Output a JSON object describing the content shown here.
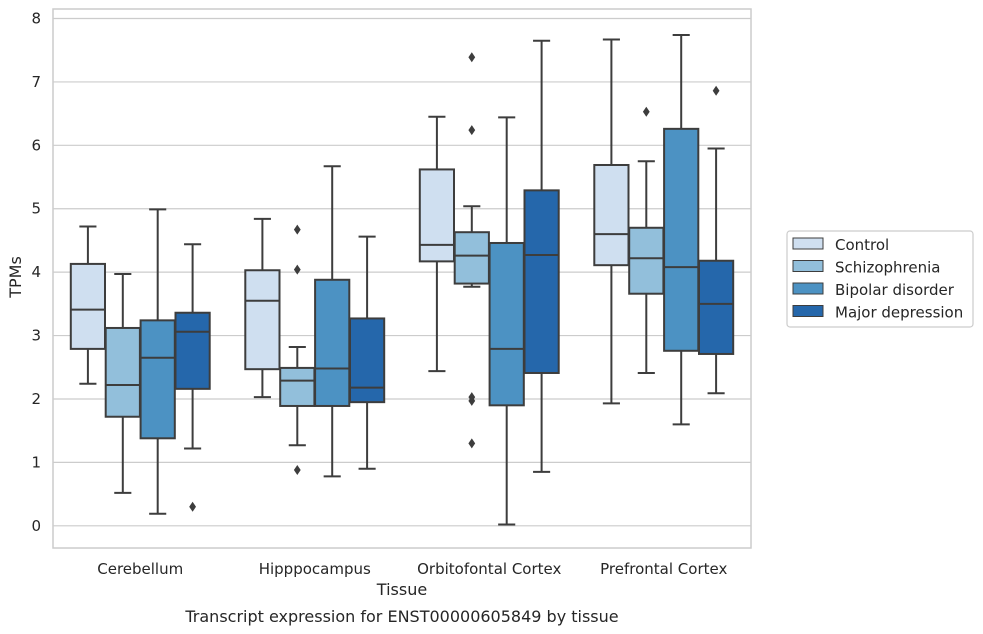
{
  "caption": "Transcript expression for ENST00000605849 by tissue",
  "colors": {
    "Control": "#cfdff0",
    "Schizophrenia": "#92bfdb",
    "Bipolar disorder": "#4c92c3",
    "Major depression": "#2567ab",
    "edge": "#3d3d3d",
    "grid": "#cccccc",
    "frame": "#cccccc"
  },
  "chart_data": {
    "type": "box",
    "xlabel": "Tissue",
    "ylabel": "TPMs",
    "ylim": [
      -0.35,
      8.15
    ],
    "yticks": [
      0,
      1,
      2,
      3,
      4,
      5,
      6,
      7,
      8
    ],
    "grid": "horizontal",
    "legend_position": "right",
    "categories": [
      "Cerebellum",
      "Hipppocampus",
      "Orbitofontal Cortex",
      "Prefrontal Cortex"
    ],
    "series": [
      {
        "name": "Control",
        "boxes": [
          {
            "q1": 2.79,
            "median": 3.41,
            "q3": 4.13,
            "whisker_low": 2.24,
            "whisker_high": 4.72,
            "outliers": []
          },
          {
            "q1": 2.47,
            "median": 3.55,
            "q3": 4.03,
            "whisker_low": 2.03,
            "whisker_high": 4.84,
            "outliers": []
          },
          {
            "q1": 4.17,
            "median": 4.43,
            "q3": 5.62,
            "whisker_low": 2.44,
            "whisker_high": 6.45,
            "outliers": []
          },
          {
            "q1": 4.11,
            "median": 4.6,
            "q3": 5.69,
            "whisker_low": 1.93,
            "whisker_high": 7.67,
            "outliers": []
          }
        ]
      },
      {
        "name": "Schizophrenia",
        "boxes": [
          {
            "q1": 1.72,
            "median": 2.22,
            "q3": 3.12,
            "whisker_low": 0.52,
            "whisker_high": 3.97,
            "outliers": []
          },
          {
            "q1": 1.89,
            "median": 2.29,
            "q3": 2.49,
            "whisker_low": 1.27,
            "whisker_high": 2.82,
            "outliers": [
              4.04,
              4.67,
              0.88
            ]
          },
          {
            "q1": 3.82,
            "median": 4.26,
            "q3": 4.63,
            "whisker_low": 3.77,
            "whisker_high": 5.04,
            "outliers": [
              7.39,
              6.24,
              1.97,
              2.03,
              1.3
            ]
          },
          {
            "q1": 3.66,
            "median": 4.22,
            "q3": 4.7,
            "whisker_low": 2.41,
            "whisker_high": 5.75,
            "outliers": [
              6.53
            ]
          }
        ]
      },
      {
        "name": "Bipolar disorder",
        "boxes": [
          {
            "q1": 1.38,
            "median": 2.65,
            "q3": 3.24,
            "whisker_low": 0.19,
            "whisker_high": 4.99,
            "outliers": []
          },
          {
            "q1": 1.89,
            "median": 2.48,
            "q3": 3.88,
            "whisker_low": 0.78,
            "whisker_high": 5.67,
            "outliers": []
          },
          {
            "q1": 1.9,
            "median": 2.79,
            "q3": 4.46,
            "whisker_low": 0.02,
            "whisker_high": 6.44,
            "outliers": []
          },
          {
            "q1": 2.76,
            "median": 4.08,
            "q3": 6.26,
            "whisker_low": 1.6,
            "whisker_high": 7.74,
            "outliers": []
          }
        ]
      },
      {
        "name": "Major depression",
        "boxes": [
          {
            "q1": 2.16,
            "median": 3.06,
            "q3": 3.36,
            "whisker_low": 1.22,
            "whisker_high": 4.44,
            "outliers": [
              0.3
            ]
          },
          {
            "q1": 1.95,
            "median": 2.18,
            "q3": 3.27,
            "whisker_low": 0.9,
            "whisker_high": 4.56,
            "outliers": []
          },
          {
            "q1": 2.41,
            "median": 4.27,
            "q3": 5.29,
            "whisker_low": 0.85,
            "whisker_high": 7.65,
            "outliers": []
          },
          {
            "q1": 2.71,
            "median": 3.5,
            "q3": 4.18,
            "whisker_low": 2.09,
            "whisker_high": 5.95,
            "outliers": [
              6.86
            ]
          }
        ]
      }
    ]
  }
}
